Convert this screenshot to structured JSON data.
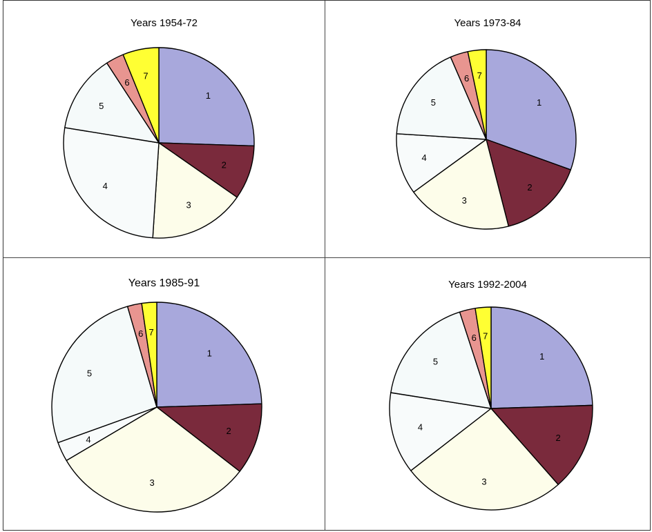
{
  "chart_data": [
    {
      "type": "pie",
      "title": "Years 1954-72",
      "categories": [
        "1",
        "2",
        "3",
        "4",
        "5",
        "6",
        "7"
      ],
      "values": [
        25,
        9,
        16,
        26,
        13,
        3,
        6
      ],
      "colors": [
        "#a8a8dc",
        "#7a2a3c",
        "#fdfdea",
        "#f8fbfb",
        "#f5fafa",
        "#e89590",
        "#ffff33"
      ]
    },
    {
      "type": "pie",
      "title": "Years 1973-84",
      "categories": [
        "1",
        "2",
        "3",
        "4",
        "5",
        "6",
        "7"
      ],
      "values": [
        30.5,
        15.5,
        19,
        11,
        17.5,
        3.2,
        3.3
      ],
      "colors": [
        "#a8a8dc",
        "#7a2a3c",
        "#fdfdea",
        "#f8fbfb",
        "#f5fafa",
        "#e89590",
        "#ffff33"
      ]
    },
    {
      "type": "pie",
      "title": "Years 1985-91",
      "categories": [
        "1",
        "2",
        "3",
        "4",
        "5",
        "6",
        "7"
      ],
      "values": [
        24.5,
        11,
        31,
        3,
        26,
        2.2,
        2.3
      ],
      "colors": [
        "#a8a8dc",
        "#7a2a3c",
        "#fdfdea",
        "#f8fbfb",
        "#f5fafa",
        "#e89590",
        "#ffff33"
      ]
    },
    {
      "type": "pie",
      "title": "Years 1992-2004",
      "categories": [
        "1",
        "2",
        "3",
        "4",
        "5",
        "6",
        "7"
      ],
      "values": [
        24.5,
        14,
        26,
        13,
        17.5,
        2.5,
        2.5
      ],
      "colors": [
        "#a8a8dc",
        "#7a2a3c",
        "#fdfdea",
        "#f8fbfb",
        "#f5fafa",
        "#e89590",
        "#ffff33"
      ]
    }
  ]
}
